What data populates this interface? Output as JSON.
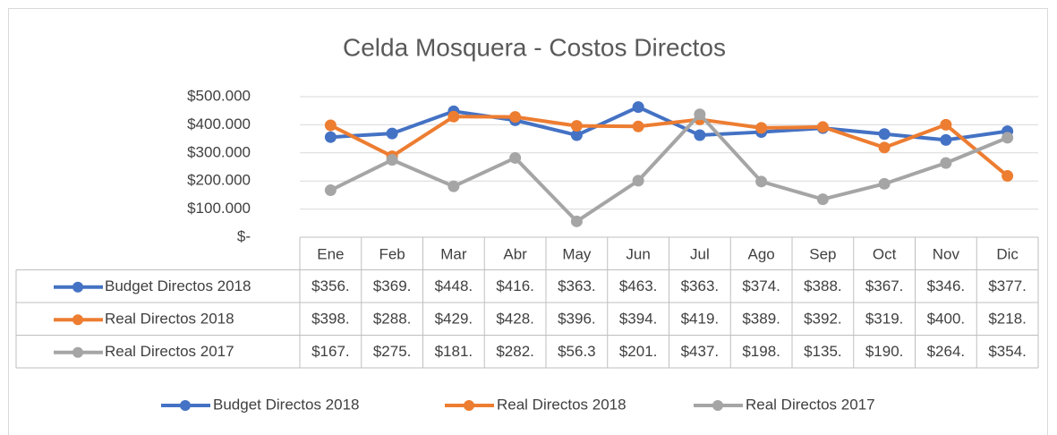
{
  "chart_data": {
    "type": "line",
    "title": "Celda Mosquera - Costos Directos",
    "categories": [
      "Ene",
      "Feb",
      "Mar",
      "Abr",
      "May",
      "Jun",
      "Jul",
      "Ago",
      "Sep",
      "Oct",
      "Nov",
      "Dic"
    ],
    "series": [
      {
        "name": "Budget Directos 2018",
        "color": "#4472c4",
        "values": [
          356000,
          369000,
          448000,
          416000,
          363000,
          463000,
          363000,
          374000,
          388000,
          367000,
          346000,
          377000
        ],
        "value_labels": [
          "$356.",
          "$369.",
          "$448.",
          "$416.",
          "$363.",
          "$463.",
          "$363.",
          "$374.",
          "$388.",
          "$367.",
          "$346.",
          "$377."
        ]
      },
      {
        "name": "Real Directos 2018",
        "color": "#ed7d31",
        "values": [
          398000,
          288000,
          429000,
          428000,
          396000,
          394000,
          419000,
          389000,
          392000,
          319000,
          400000,
          218000
        ],
        "value_labels": [
          "$398.",
          "$288.",
          "$429.",
          "$428.",
          "$396.",
          "$394.",
          "$419.",
          "$389.",
          "$392.",
          "$319.",
          "$400.",
          "$218."
        ]
      },
      {
        "name": "Real Directos 2017",
        "color": "#a5a5a5",
        "values": [
          167000,
          275000,
          181000,
          282000,
          56300,
          201000,
          437000,
          198000,
          135000,
          190000,
          264000,
          354000
        ],
        "value_labels": [
          "$167.",
          "$275.",
          "$181.",
          "$282.",
          "$56.3",
          "$201.",
          "$437.",
          "$198.",
          "$135.",
          "$190.",
          "$264.",
          "$354."
        ]
      }
    ],
    "ylim": [
      0,
      500000
    ],
    "yticks": [
      {
        "value": 0,
        "label": "$-"
      },
      {
        "value": 100000,
        "label": "$100.000"
      },
      {
        "value": 200000,
        "label": "$200.000"
      },
      {
        "value": 300000,
        "label": "$300.000"
      },
      {
        "value": 400000,
        "label": "$400.000"
      },
      {
        "value": 500000,
        "label": "$500.000"
      }
    ],
    "grid": true,
    "legend": "bottom"
  }
}
